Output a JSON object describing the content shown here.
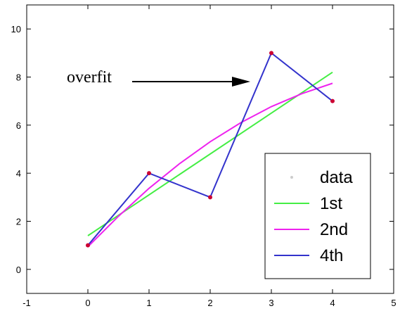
{
  "chart_data": {
    "type": "line",
    "xlim": [
      -1,
      5
    ],
    "ylim": [
      -1,
      11
    ],
    "xticks": [
      -1,
      0,
      1,
      2,
      3,
      4,
      5
    ],
    "yticks": [
      0,
      2,
      4,
      6,
      8,
      10
    ],
    "grid": false,
    "legend_position": "bottom-right",
    "data_points": {
      "name": "data",
      "x": [
        0,
        1,
        2,
        3,
        4
      ],
      "y": [
        1,
        4,
        3,
        9,
        7
      ],
      "color": "#cc0033"
    },
    "series": [
      {
        "name": "1st",
        "color": "#44ee44",
        "x": [
          0,
          4
        ],
        "y": [
          1.4,
          8.2
        ]
      },
      {
        "name": "2nd",
        "color": "#ee22ee",
        "x": [
          0,
          0.5,
          1,
          1.5,
          2,
          2.5,
          3,
          3.5,
          4
        ],
        "y": [
          0.94,
          2.21,
          3.37,
          4.4,
          5.31,
          6.1,
          6.77,
          7.31,
          7.74
        ]
      },
      {
        "name": "4th",
        "color": "#3333cc",
        "x": [
          0,
          1,
          2,
          3,
          4
        ],
        "y": [
          1,
          4,
          3,
          9,
          7
        ]
      }
    ],
    "annotation": {
      "text": "overfit",
      "points_to": [
        3,
        9
      ]
    }
  }
}
